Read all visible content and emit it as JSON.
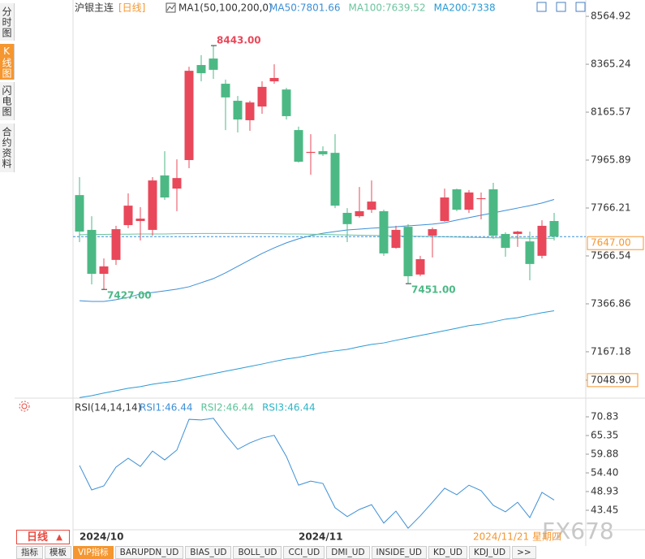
{
  "sidebar": {
    "tabs": [
      "分时图",
      "K线图",
      "闪电图",
      "合约资料"
    ]
  },
  "period_button": "日线",
  "toolbar": {
    "tabs": [
      "指标",
      "模板",
      "VIP指标",
      "BARUPDN_UD",
      "BIAS_UD",
      "BOLL_UD",
      "CCI_UD",
      "DMI_UD",
      "INSIDE_UD",
      "KD_UD",
      "KDJ_UD",
      ">>"
    ]
  },
  "watermark": "FX678",
  "chart_data": [
    {
      "type": "candlestick",
      "title": "沪银主连",
      "period": "[日线]",
      "indicator": "MA1(50,100,200,0)",
      "categories": [
        "2024/10",
        null,
        null,
        null,
        null,
        null,
        null,
        null,
        null,
        null,
        null,
        null,
        null,
        null,
        null,
        null,
        null,
        null,
        "2024/11",
        null,
        null,
        null,
        null,
        null,
        null,
        null,
        null,
        null,
        null,
        null,
        null,
        null,
        null,
        null,
        null,
        null,
        null,
        null,
        null,
        null
      ],
      "open": [
        7820,
        7675,
        7492,
        7550,
        7695,
        7712,
        7675,
        7902,
        7847,
        7966,
        8362,
        8389,
        8284,
        8213,
        8132,
        8189,
        8294,
        8260,
        8091,
        7996,
        8003,
        7996,
        7746,
        7732,
        7759,
        7753,
        7600,
        7688,
        7489,
        7651,
        7712,
        7844,
        7759,
        7803,
        7844,
        7658,
        7658,
        7627,
        7567,
        7712
      ],
      "high": [
        7895,
        7732,
        7556,
        7692,
        7827,
        7770,
        7895,
        8003,
        7969,
        8355,
        8403,
        8443,
        8301,
        8233,
        8213,
        8294,
        8365,
        8267,
        8105,
        8074,
        8023,
        8074,
        7766,
        7854,
        7881,
        7759,
        7692,
        7699,
        7567,
        7685,
        7847,
        7847,
        7841,
        7831,
        7871,
        7665,
        7671,
        7668,
        7715,
        7746
      ],
      "low": [
        7624,
        7448,
        7427,
        7529,
        7682,
        7631,
        7651,
        7800,
        7753,
        7932,
        8294,
        8304,
        8091,
        8081,
        8088,
        8159,
        8284,
        8135,
        7956,
        7905,
        7983,
        7766,
        7624,
        7726,
        7746,
        7567,
        7597,
        7451,
        7482,
        7560,
        7709,
        7753,
        7746,
        7719,
        7638,
        7563,
        7604,
        7465,
        7556,
        7631
      ],
      "close": [
        7668,
        7492,
        7523,
        7678,
        7776,
        7722,
        7881,
        7810,
        7891,
        8338,
        8328,
        8342,
        8227,
        8135,
        8206,
        8271,
        8308,
        8149,
        7959,
        8000,
        7990,
        7776,
        7699,
        7753,
        7793,
        7577,
        7675,
        7482,
        7553,
        7678,
        7810,
        7759,
        7831,
        7807,
        7651,
        7600,
        7668,
        7533,
        7692,
        7647
      ],
      "up_color": "#e8485a",
      "down_color": "#4cb985",
      "series": [
        {
          "label": "MA50:7801.66",
          "color": "#3d8fd6",
          "values": [
            7380,
            7377,
            7377,
            7384,
            7394,
            7408,
            7414,
            7421,
            7428,
            7438,
            7455,
            7472,
            7496,
            7523,
            7550,
            7577,
            7600,
            7621,
            7638,
            7651,
            7661,
            7668,
            7675,
            7678,
            7682,
            7685,
            7688,
            7692,
            7695,
            7699,
            7705,
            7716,
            7726,
            7736,
            7746,
            7756,
            7766,
            7776,
            7787,
            7801.66
          ]
        },
        {
          "label": "MA100:7639.52",
          "color": "#6cc49e",
          "values": [
            7655,
            7656,
            7656,
            7657,
            7657,
            7658,
            7658,
            7658,
            7659,
            7659,
            7660,
            7660,
            7660,
            7660,
            7660,
            7659,
            7659,
            7658,
            7658,
            7657,
            7656,
            7655,
            7654,
            7653,
            7652,
            7651,
            7650,
            7649,
            7648,
            7647,
            7646,
            7645,
            7644,
            7643,
            7642,
            7642,
            7641,
            7640,
            7640,
            7639.52
          ]
        },
        {
          "label": "MA200:7338",
          "color": "#2a9ad6",
          "values": [
            6976,
            6984,
            6995,
            7005,
            7015,
            7022,
            7032,
            7039,
            7045,
            7056,
            7066,
            7076,
            7086,
            7096,
            7106,
            7116,
            7127,
            7137,
            7144,
            7154,
            7164,
            7171,
            7177,
            7188,
            7198,
            7204,
            7215,
            7225,
            7235,
            7245,
            7255,
            7265,
            7276,
            7282,
            7292,
            7303,
            7309,
            7320,
            7330,
            7338
          ]
        }
      ],
      "ylim": [
        6974,
        8616
      ],
      "yticks": [
        8564.92,
        8365.24,
        8165.57,
        7965.89,
        7766.21,
        7566.54,
        7366.86,
        7167.18,
        {
          "value": 7048.9,
          "label": "7048.90"
        }
      ],
      "current_price": {
        "value": 7647,
        "label": "7647.00"
      },
      "annotations": [
        {
          "value": 8443,
          "label": "8443.00"
        },
        {
          "value": 7427,
          "label": "7427.00"
        },
        {
          "value": 7451,
          "label": "7451.00"
        }
      ],
      "date_label": "2024/11/21 星期四"
    },
    {
      "type": "line",
      "title": "RSI(14,14,14)",
      "legend": [
        {
          "label": "RSI1:46.44",
          "color": "#3d8fd6"
        },
        {
          "label": "RSI2:46.44",
          "color": "#5cc49a"
        },
        {
          "label": "RSI3:46.44",
          "color": "#2fb5c6"
        }
      ],
      "series": [
        {
          "color": "#3d8fd6",
          "values": [
            56.6,
            49.4,
            50.6,
            56.1,
            58.7,
            56.3,
            60.8,
            58.2,
            61.1,
            70.1,
            69.9,
            70.4,
            65.6,
            61.3,
            63.2,
            64.6,
            65.4,
            59.2,
            50.8,
            52.0,
            51.3,
            44.2,
            41.6,
            43.7,
            45.1,
            39.7,
            43.2,
            38.2,
            41.8,
            45.8,
            49.9,
            48.0,
            50.8,
            49.2,
            44.9,
            43.0,
            45.8,
            41.3,
            48.7,
            46.44
          ]
        }
      ],
      "ylim": [
        37.03,
        74.64
      ],
      "yticks": [
        70.83,
        65.35,
        59.88,
        {
          "value": 54.4,
          "label": "54.40"
        },
        48.93,
        43.45
      ]
    }
  ]
}
